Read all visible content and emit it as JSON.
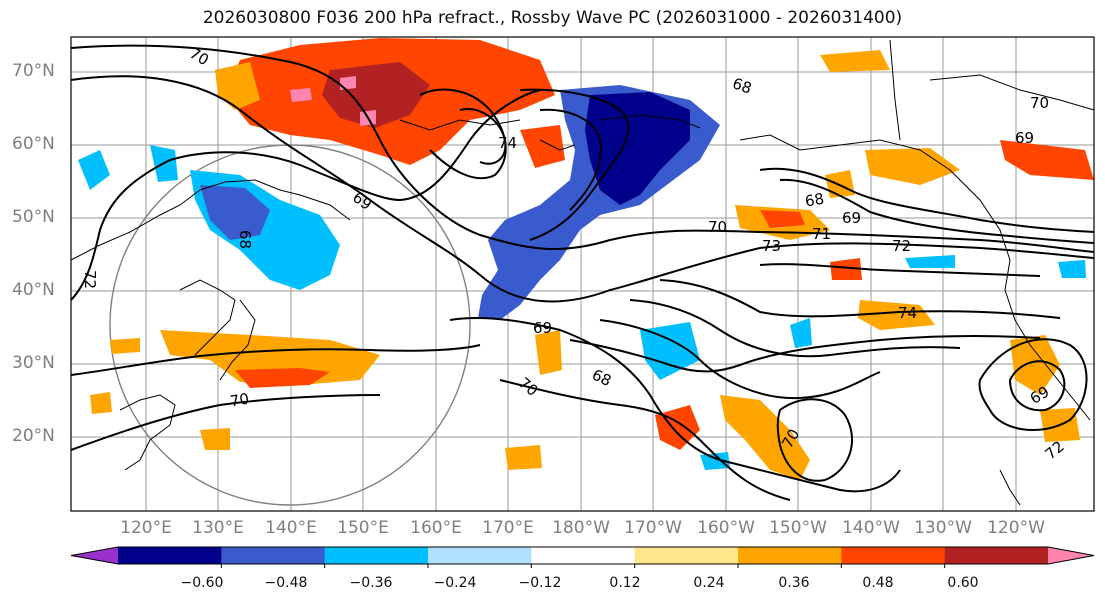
{
  "title": "2026030800 F036 200 hPa refract., Rossby Wave PC (2026031000 - 2026031400)",
  "lat_labels": [
    "70°N",
    "60°N",
    "50°N",
    "40°N",
    "30°N",
    "20°N"
  ],
  "lon_labels": [
    "120°E",
    "130°E",
    "140°E",
    "150°E",
    "160°E",
    "170°E",
    "180°W",
    "170°W",
    "160°W",
    "150°W",
    "140°W",
    "130°W",
    "120°W"
  ],
  "contour_labels": [
    "70",
    "68",
    "70",
    "69",
    "74",
    "69",
    "68",
    "69",
    "68",
    "70",
    "71",
    "73",
    "72",
    "72",
    "74",
    "69",
    "70",
    "68",
    "70",
    "69",
    "72",
    "70"
  ],
  "colorbar": {
    "ticks": [
      "−0.60",
      "−0.48",
      "−0.36",
      "−0.24",
      "−0.12",
      "0.12",
      "0.24",
      "0.36",
      "0.48",
      "0.60"
    ],
    "colors": [
      "#9932cc",
      "#00008b",
      "#3a5bcd",
      "#00bfff",
      "#b0e2ff",
      "#ffffff",
      "#ffe68c",
      "#ffa500",
      "#ff4500",
      "#b22222",
      "#ff85b0"
    ]
  }
}
